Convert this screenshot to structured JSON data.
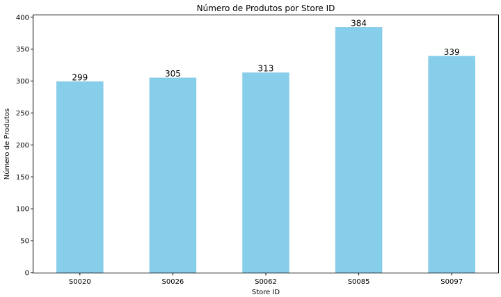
{
  "chart_data": {
    "type": "bar",
    "title": "Número de Produtos por Store ID",
    "xlabel": "Store ID",
    "ylabel": "Número de Produtos",
    "categories": [
      "S0020",
      "S0026",
      "S0062",
      "S0085",
      "S0097"
    ],
    "values": [
      299,
      305,
      313,
      384,
      339
    ],
    "data_labels": [
      "299",
      "305",
      "313",
      "384",
      "339"
    ],
    "ylim": [
      0,
      403
    ],
    "yticks": [
      0,
      50,
      100,
      150,
      200,
      250,
      300,
      350,
      400
    ],
    "ytick_labels": [
      "0",
      "50",
      "100",
      "150",
      "200",
      "250",
      "300",
      "350",
      "400"
    ],
    "bar_color": "#87CEEB",
    "grid": false,
    "legend": false
  }
}
